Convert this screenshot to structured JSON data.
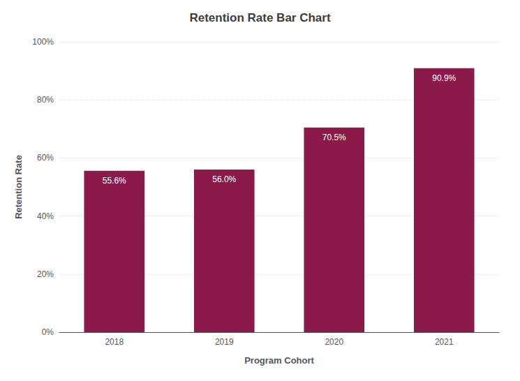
{
  "chart_data": {
    "type": "bar",
    "title": "Retention Rate Bar Chart",
    "xlabel": "Program Cohort",
    "ylabel": "Retention Rate",
    "categories": [
      "2018",
      "2019",
      "2020",
      "2021"
    ],
    "values": [
      55.6,
      56.0,
      70.5,
      90.9
    ],
    "value_labels": [
      "55.6%",
      "56.0%",
      "70.5%",
      "90.9%"
    ],
    "color": "#8B1A4A",
    "ylim": [
      0,
      100
    ],
    "yticks": [
      {
        "value": 0,
        "label": "0%"
      },
      {
        "value": 20,
        "label": "20%"
      },
      {
        "value": 40,
        "label": "40%"
      },
      {
        "value": 60,
        "label": "60%"
      },
      {
        "value": 80,
        "label": "80%"
      },
      {
        "value": 100,
        "label": "100%"
      }
    ],
    "grid": true,
    "data_labels": true
  }
}
